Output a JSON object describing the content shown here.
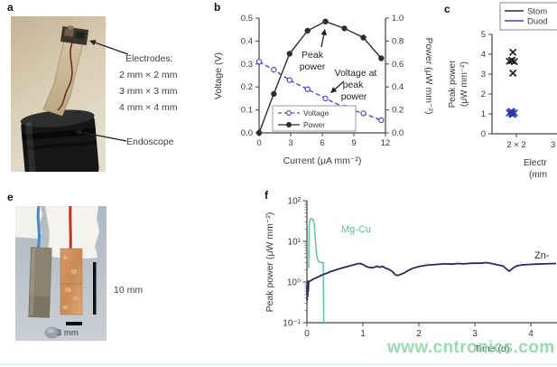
{
  "figure": {
    "panel_a": {
      "label": "a",
      "electrodes_title": "Electrodes:",
      "electrode_sizes": [
        "2 mm × 2 mm",
        "3 mm × 3 mm",
        "4 mm × 4 mm"
      ],
      "endoscope_label": "Endoscope"
    },
    "panel_e": {
      "label": "e",
      "scale_bar_10mm": "10 mm",
      "scale_bar_3mm": "3 mm"
    },
    "panel_b_label": "b",
    "panel_c_label": "c",
    "panel_f_label": "f"
  },
  "watermark": {
    "text": "www.cntronics.com",
    "color": "#8bd8a3"
  },
  "chart_data": [
    {
      "id": "b",
      "type": "line",
      "xlabel": "Current (μA mm⁻²)",
      "ylabel_left": "Voltage (V)",
      "ylabel_right": "Power (μW mm⁻²)",
      "xlim": [
        0,
        12
      ],
      "xticks": [
        "0",
        "3",
        "6",
        "9",
        "12"
      ],
      "ylim_left": [
        0,
        0.5
      ],
      "yticks_left": [
        "0.0",
        "0.1",
        "0.2",
        "0.3",
        "0.4",
        "0.5"
      ],
      "ylim_right": [
        0,
        1.0
      ],
      "yticks_right": [
        "0.0",
        "0.2",
        "0.4",
        "0.6",
        "0.8",
        "1.0"
      ],
      "legend_position": "lower-left",
      "grid": false,
      "annotations": [
        {
          "name": "peak-power",
          "lines": [
            "Peak",
            "power"
          ]
        },
        {
          "name": "voltage-at-peak-power",
          "lines": [
            "Voltage at",
            "peak",
            "power"
          ]
        }
      ],
      "series": [
        {
          "name": "Voltage",
          "axis": "left",
          "color": "#4a4cc8",
          "style": "dashed",
          "marker": "open",
          "points": [
            [
              0,
              0.31
            ],
            [
              1.4,
              0.275
            ],
            [
              2.9,
              0.23
            ],
            [
              4.6,
              0.19
            ],
            [
              6.3,
              0.15
            ],
            [
              8.1,
              0.11
            ],
            [
              9.9,
              0.085
            ],
            [
              11.6,
              0.055
            ]
          ]
        },
        {
          "name": "Power",
          "axis": "right",
          "color": "#2e2e2e",
          "style": "solid",
          "marker": "filled",
          "points": [
            [
              0,
              0
            ],
            [
              1.4,
              0.34
            ],
            [
              2.9,
              0.69
            ],
            [
              4.6,
              0.89
            ],
            [
              6.3,
              0.97
            ],
            [
              8.1,
              0.91
            ],
            [
              9.9,
              0.83
            ],
            [
              11.6,
              0.65
            ]
          ]
        }
      ]
    },
    {
      "id": "c",
      "type": "scatter",
      "ylabel_lines": [
        "Peak power",
        "(μW mm⁻²)"
      ],
      "ylim": [
        0,
        5
      ],
      "yticks": [
        "0",
        "1",
        "2",
        "3",
        "4",
        "5"
      ],
      "xtick_labels": [
        "2 × 2",
        "3"
      ],
      "xlabel_lines": [
        "Electr",
        "(mm"
      ],
      "legend": [
        {
          "label": "Stom",
          "color": "#2e2e2e"
        },
        {
          "label": "Duod",
          "color": "#3a4ab0"
        }
      ],
      "series": [
        {
          "name": "Stom",
          "color": "#1f1f1f",
          "marker": "x",
          "points": [
            [
              0.93,
              4.1
            ],
            [
              0.86,
              3.65
            ],
            [
              0.91,
              3.67
            ],
            [
              0.96,
              3.63
            ],
            [
              0.91,
              3.7
            ],
            [
              0.93,
              3.05
            ]
          ]
        },
        {
          "name": "Duod",
          "color": "#2a35b5",
          "marker": "x",
          "points": [
            [
              0.86,
              1.05
            ],
            [
              0.91,
              1.0
            ],
            [
              0.96,
              1.05
            ],
            [
              0.91,
              1.1
            ],
            [
              0.89,
              1.12
            ],
            [
              0.93,
              0.98
            ]
          ]
        }
      ]
    },
    {
      "id": "f",
      "type": "line",
      "xlabel": "Time (d)",
      "ylabel": "Peak power (μW mm⁻²)",
      "xlim": [
        0,
        4.45
      ],
      "xticks": [
        "0",
        "1",
        "2",
        "3",
        "4"
      ],
      "yscale": "log",
      "ylim": [
        0.1,
        100
      ],
      "yticks": [
        "10⁻¹",
        "10⁰",
        "10¹",
        "10²"
      ],
      "series": [
        {
          "name": "Mg-Cu",
          "color": "#58c09c",
          "points": [
            [
              0.03,
              2.2
            ],
            [
              0.04,
              25
            ],
            [
              0.05,
              33
            ],
            [
              0.06,
              36
            ],
            [
              0.08,
              35
            ],
            [
              0.11,
              35
            ],
            [
              0.13,
              27
            ],
            [
              0.15,
              11
            ],
            [
              0.17,
              5.2
            ],
            [
              0.19,
              3.5
            ],
            [
              0.22,
              3.1
            ],
            [
              0.26,
              3.0
            ],
            [
              0.29,
              3.0
            ],
            [
              0.3,
              0.1
            ]
          ]
        },
        {
          "name": "Zn-",
          "color": "#2a2a62",
          "points": [
            [
              0,
              0.8
            ],
            [
              0.005,
              0.35
            ],
            [
              0.01,
              1.0
            ],
            [
              0.015,
              0.45
            ],
            [
              0.02,
              1.05
            ],
            [
              0.025,
              0.6
            ],
            [
              0.03,
              1.0
            ],
            [
              0.05,
              1.05
            ],
            [
              0.08,
              1.1
            ],
            [
              0.12,
              1.2
            ],
            [
              0.18,
              1.3
            ],
            [
              0.25,
              1.45
            ],
            [
              0.33,
              1.6
            ],
            [
              0.42,
              1.8
            ],
            [
              0.52,
              2.0
            ],
            [
              0.62,
              2.2
            ],
            [
              0.72,
              2.4
            ],
            [
              0.82,
              2.6
            ],
            [
              0.9,
              2.8
            ],
            [
              0.95,
              2.85
            ],
            [
              1.0,
              2.7
            ],
            [
              1.05,
              2.45
            ],
            [
              1.1,
              2.3
            ],
            [
              1.18,
              2.25
            ],
            [
              1.25,
              2.45
            ],
            [
              1.3,
              2.3
            ],
            [
              1.35,
              2.45
            ],
            [
              1.4,
              2.2
            ],
            [
              1.45,
              2.1
            ],
            [
              1.52,
              1.85
            ],
            [
              1.58,
              1.5
            ],
            [
              1.62,
              1.45
            ],
            [
              1.68,
              1.55
            ],
            [
              1.75,
              1.7
            ],
            [
              1.82,
              1.95
            ],
            [
              1.9,
              2.2
            ],
            [
              2.0,
              2.4
            ],
            [
              2.1,
              2.55
            ],
            [
              2.2,
              2.65
            ],
            [
              2.3,
              2.7
            ],
            [
              2.45,
              2.8
            ],
            [
              2.6,
              2.75
            ],
            [
              2.7,
              2.85
            ],
            [
              2.8,
              2.8
            ],
            [
              2.95,
              2.9
            ],
            [
              3.1,
              2.9
            ],
            [
              3.2,
              3.0
            ],
            [
              3.3,
              2.85
            ],
            [
              3.4,
              2.65
            ],
            [
              3.5,
              2.5
            ],
            [
              3.58,
              2.0
            ],
            [
              3.62,
              1.85
            ],
            [
              3.68,
              2.2
            ],
            [
              3.75,
              2.5
            ],
            [
              3.85,
              2.65
            ],
            [
              3.95,
              2.7
            ],
            [
              4.1,
              2.75
            ],
            [
              4.25,
              2.8
            ],
            [
              4.45,
              2.85
            ]
          ]
        }
      ]
    }
  ]
}
